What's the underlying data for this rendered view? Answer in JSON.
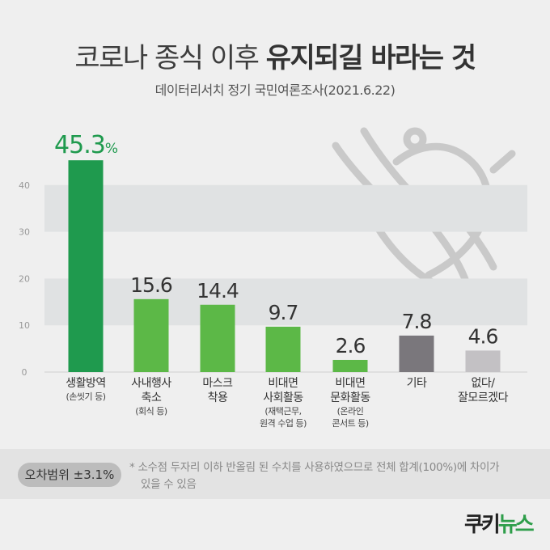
{
  "header": {
    "title_part1": "코로나 종식 이후",
    "title_part2": "유지되길 바라는 것",
    "subtitle": "데이터리서치 정기 국민여론조사(2021.6.22)"
  },
  "chart_data": {
    "type": "bar",
    "title": "코로나 종식 이후 유지되길 바라는 것",
    "subtitle": "데이터리서치 정기 국민여론조사(2021.6.22)",
    "categories": [
      {
        "lines": [
          "생활방역"
        ],
        "sub": [
          "(손씻기 등)"
        ]
      },
      {
        "lines": [
          "사내행사",
          "축소"
        ],
        "sub": [
          "(회식 등)"
        ]
      },
      {
        "lines": [
          "마스크",
          "착용"
        ],
        "sub": []
      },
      {
        "lines": [
          "비대면",
          "사회활동"
        ],
        "sub": [
          "(재택근무,",
          "원격 수업 등)"
        ]
      },
      {
        "lines": [
          "비대면",
          "문화활동"
        ],
        "sub": [
          "(온라인",
          "콘서트 등)"
        ]
      },
      {
        "lines": [
          "기타"
        ],
        "sub": []
      },
      {
        "lines": [
          "없다/",
          "잘모르겠다"
        ],
        "sub": []
      }
    ],
    "values": [
      45.3,
      15.6,
      14.4,
      9.7,
      2.6,
      7.8,
      4.6
    ],
    "value_labels": [
      "45.3",
      "15.6",
      "14.4",
      "9.7",
      "2.6",
      "7.8",
      "4.6"
    ],
    "first_label_suffix": "%",
    "colors": [
      "#1f9a4e",
      "#5cb847",
      "#5cb847",
      "#5cb847",
      "#5cb847",
      "#7a777c",
      "#c3c1c4"
    ],
    "highlight_color": "#1f9a4e",
    "yticks": [
      0,
      10,
      20,
      30,
      40
    ],
    "ylim": [
      0,
      50
    ],
    "grid": "alternating bands"
  },
  "footer": {
    "error_margin": "오차범위 ±3.1%",
    "note_line1": "* 소수점 두자리 이하 반올림 된 수치를 사용하였으므로 전체 합계(100%)에 차이가",
    "note_line2": "있을 수 있음"
  },
  "logo": {
    "part1": "쿠키",
    "part2": "뉴스"
  }
}
